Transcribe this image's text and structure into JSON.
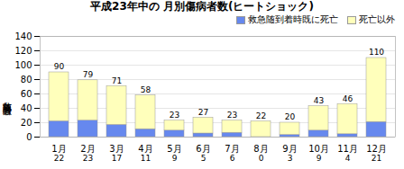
{
  "chart_data": {
    "type": "bar",
    "stacked": true,
    "title": "平成23年中の 月別傷病者数(ヒートショック)",
    "ylabel": "救急随要請者数",
    "categories": [
      "1月",
      "2月",
      "3月",
      "4月",
      "5月",
      "6月",
      "7月",
      "8月",
      "9月",
      "10月",
      "11月",
      "12月"
    ],
    "series": [
      {
        "name": "救急随到着時既に死亡",
        "color": "#6688EE",
        "values": [
          22,
          23,
          17,
          11,
          9,
          5,
          6,
          0,
          3,
          9,
          4,
          21
        ],
        "data_labels": true
      },
      {
        "name": "死亡以外",
        "color": "#FFFFBB",
        "values": [
          68,
          56,
          54,
          47,
          14,
          22,
          17,
          22,
          17,
          34,
          42,
          89
        ]
      }
    ],
    "totals": [
      90,
      79,
      71,
      58,
      23,
      27,
      23,
      22,
      20,
      43,
      46,
      110
    ],
    "ylim": [
      0,
      140
    ],
    "yticks": [
      0,
      20,
      40,
      60,
      80,
      100,
      120,
      140
    ],
    "grid": true,
    "legend": "top"
  }
}
